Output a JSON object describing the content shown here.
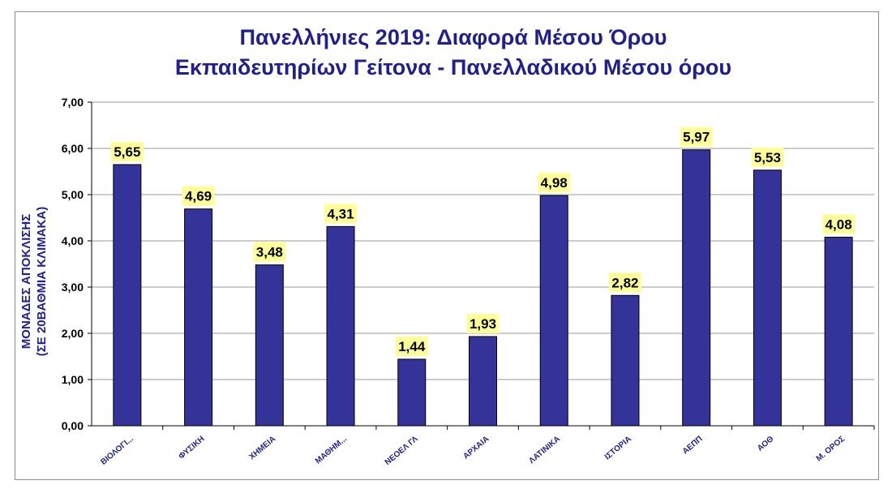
{
  "chart_data": {
    "type": "bar",
    "title_lines": [
      "Πανελλήνιες 2019: Διαφορά Μέσου Όρου",
      "Εκπαιδευτηρίων Γείτονα - Πανελλαδικού Μέσου όρου"
    ],
    "ylabel_lines": [
      "ΜΟΝΑΔΕΣ ΑΠΟΚΛΙΣΗΣ",
      "(ΣΕ 20ΒΑΘΜΙΑ ΚΛΙΜΑΚΑ)"
    ],
    "xlabel": "",
    "categories": [
      "ΒΙΟΛΟΓΙ...",
      "ΦΥΣΙΚΗ",
      "ΧΗΜΕΙΑ",
      "ΜΑΘΗΜ...",
      "ΝΕΟΕΛ ΓΛ",
      "ΑΡΧΑΙΑ",
      "ΛΑΤΙΝΙΚΑ",
      "ΙΣΤΟΡΙΑ",
      "ΑΕΠΠ",
      "ΑΟΘ",
      "Μ. ΟΡΟΣ"
    ],
    "values": [
      5.65,
      4.69,
      3.48,
      4.31,
      1.44,
      1.93,
      4.98,
      2.82,
      5.97,
      5.53,
      4.08
    ],
    "value_labels": [
      "5,65",
      "4,69",
      "3,48",
      "4,31",
      "1,44",
      "1,93",
      "4,98",
      "2,82",
      "5,97",
      "5,53",
      "4,08"
    ],
    "ylim": [
      0,
      7
    ],
    "yticks": [
      "0,00",
      "1,00",
      "2,00",
      "3,00",
      "4,00",
      "5,00",
      "6,00",
      "7,00"
    ],
    "grid": true,
    "legend": "none",
    "colors": {
      "bar": "#333399",
      "bar_edge": "#000000",
      "label_bg": "#ffff99",
      "title": "#1f1f8f",
      "grid": "#999999"
    }
  }
}
